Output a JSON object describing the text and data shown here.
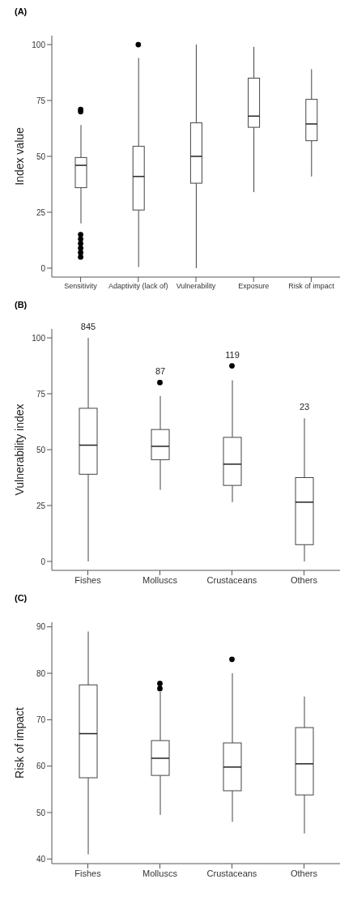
{
  "chart_data": [
    {
      "type": "box",
      "title": "(A)",
      "ylabel": "Index value",
      "categories": [
        "Sensitivity",
        "Adaptivity (lack of)",
        "Vulnerability",
        "Exposure",
        "Risk of impact"
      ],
      "ylim": [
        -4,
        104
      ],
      "yticks": [
        0,
        25,
        50,
        75,
        100
      ],
      "grid": false,
      "boxes": [
        {
          "low": 20,
          "q1": 36,
          "median": 46,
          "q3": 49.5,
          "high": 64,
          "outliers": [
            5,
            7,
            9,
            11,
            13,
            15,
            70,
            71
          ]
        },
        {
          "low": 0.5,
          "q1": 26,
          "median": 41,
          "q3": 54.5,
          "high": 94,
          "outliers": [
            100
          ]
        },
        {
          "low": 0,
          "q1": 38,
          "median": 50,
          "q3": 65,
          "high": 100
        },
        {
          "low": 34,
          "q1": 63,
          "median": 68,
          "q3": 85,
          "high": 99
        },
        {
          "low": 41,
          "q1": 57,
          "median": 64.5,
          "q3": 75.5,
          "high": 89
        }
      ]
    },
    {
      "type": "box",
      "title": "(B)",
      "ylabel": "Vulnerability index",
      "categories": [
        "Fishes",
        "Molluscs",
        "Crustaceans",
        "Others"
      ],
      "ylim": [
        -4,
        104
      ],
      "yticks": [
        0,
        25,
        50,
        75,
        100
      ],
      "grid": false,
      "boxes": [
        {
          "low": 0,
          "q1": 39,
          "median": 52,
          "q3": 68.5,
          "high": 100
        },
        {
          "low": 32,
          "q1": 45.5,
          "median": 51.5,
          "q3": 59,
          "high": 74,
          "outliers": [
            80
          ]
        },
        {
          "low": 26.5,
          "q1": 34,
          "median": 43.5,
          "q3": 55.5,
          "high": 81,
          "outliers": [
            87.5
          ]
        },
        {
          "low": 0,
          "q1": 7.5,
          "median": 26.5,
          "q3": 37.5,
          "high": 64
        }
      ],
      "annotations": [
        "845",
        "87",
        "119",
        "23"
      ]
    },
    {
      "type": "box",
      "title": "(C)",
      "ylabel": "Risk of impact",
      "categories": [
        "Fishes",
        "Molluscs",
        "Crustaceans",
        "Others"
      ],
      "ylim": [
        39,
        91
      ],
      "yticks": [
        40,
        50,
        60,
        70,
        80,
        90
      ],
      "grid": false,
      "boxes": [
        {
          "low": 41,
          "q1": 57.5,
          "median": 67,
          "q3": 77.5,
          "high": 89
        },
        {
          "low": 49.5,
          "q1": 58,
          "median": 61.7,
          "q3": 65.5,
          "high": 76,
          "outliers": [
            76.7,
            77.8
          ]
        },
        {
          "low": 48,
          "q1": 54.7,
          "median": 59.8,
          "q3": 65,
          "high": 80,
          "outliers": [
            83
          ]
        },
        {
          "low": 45.5,
          "q1": 53.8,
          "median": 60.5,
          "q3": 68.3,
          "high": 75
        }
      ]
    }
  ]
}
